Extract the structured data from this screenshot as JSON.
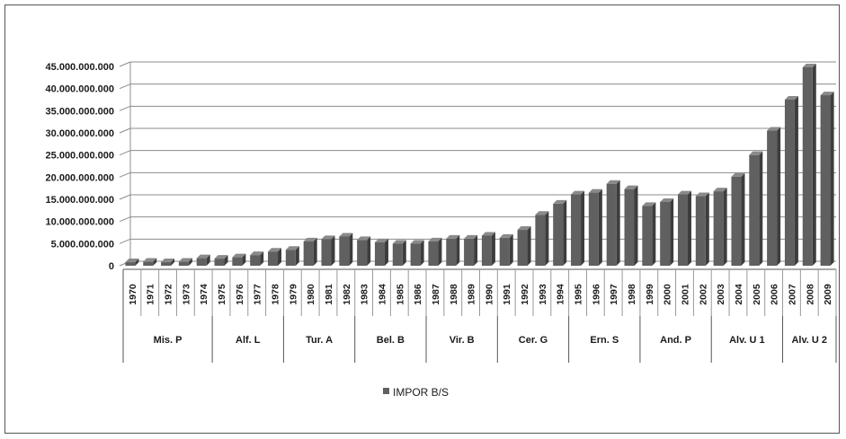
{
  "chart_data": {
    "type": "bar",
    "title": "",
    "xlabel": "",
    "ylabel": "",
    "ylim": [
      0,
      45000000000
    ],
    "yticks": [
      "0",
      "5.000.000.000",
      "10.000.000.000",
      "15.000.000.000",
      "20.000.000.000",
      "25.000.000.000",
      "30.000.000.000",
      "35.000.000.000",
      "40.000.000.000",
      "45.000.000.000"
    ],
    "categories": [
      "1970",
      "1971",
      "1972",
      "1973",
      "1974",
      "1975",
      "1976",
      "1977",
      "1978",
      "1979",
      "1980",
      "1981",
      "1982",
      "1983",
      "1984",
      "1985",
      "1986",
      "1987",
      "1988",
      "1989",
      "1990",
      "1991",
      "1992",
      "1993",
      "1994",
      "1995",
      "1996",
      "1997",
      "1998",
      "1999",
      "2000",
      "2001",
      "2002",
      "2003",
      "2004",
      "2005",
      "2006",
      "2007",
      "2008",
      "2009"
    ],
    "groups": [
      {
        "label": "Mis. P",
        "count": 5
      },
      {
        "label": "Alf. L",
        "count": 4
      },
      {
        "label": "Tur. A",
        "count": 4
      },
      {
        "label": "Bel. B",
        "count": 4
      },
      {
        "label": "Vir. B",
        "count": 4
      },
      {
        "label": "Cer. G",
        "count": 4
      },
      {
        "label": "Ern. S",
        "count": 4
      },
      {
        "label": "And. P",
        "count": 4
      },
      {
        "label": "Alv. U 1",
        "count": 4
      },
      {
        "label": "Alv. U 2",
        "count": 3
      }
    ],
    "series": [
      {
        "name": "IMPOR B/S",
        "values": [
          800000000,
          900000000,
          800000000,
          900000000,
          1700000000,
          1600000000,
          1900000000,
          2400000000,
          3200000000,
          3600000000,
          5500000000,
          6000000000,
          6600000000,
          5800000000,
          5300000000,
          5000000000,
          5000000000,
          5500000000,
          6100000000,
          6100000000,
          6800000000,
          6300000000,
          8100000000,
          11500000000,
          14000000000,
          16100000000,
          16500000000,
          18500000000,
          17300000000,
          13500000000,
          14400000000,
          16100000000,
          15700000000,
          16800000000,
          20100000000,
          25000000000,
          30500000000,
          37500000000,
          44800000000,
          38500000000
        ]
      }
    ],
    "colors": {
      "bar_front": "#606060",
      "bar_side": "#3d3d3d",
      "bar_top": "#8a8a8a",
      "grid": "#8c8c8c"
    },
    "legend": {
      "position": "bottom",
      "label": "IMPOR B/S"
    },
    "grid": true
  }
}
